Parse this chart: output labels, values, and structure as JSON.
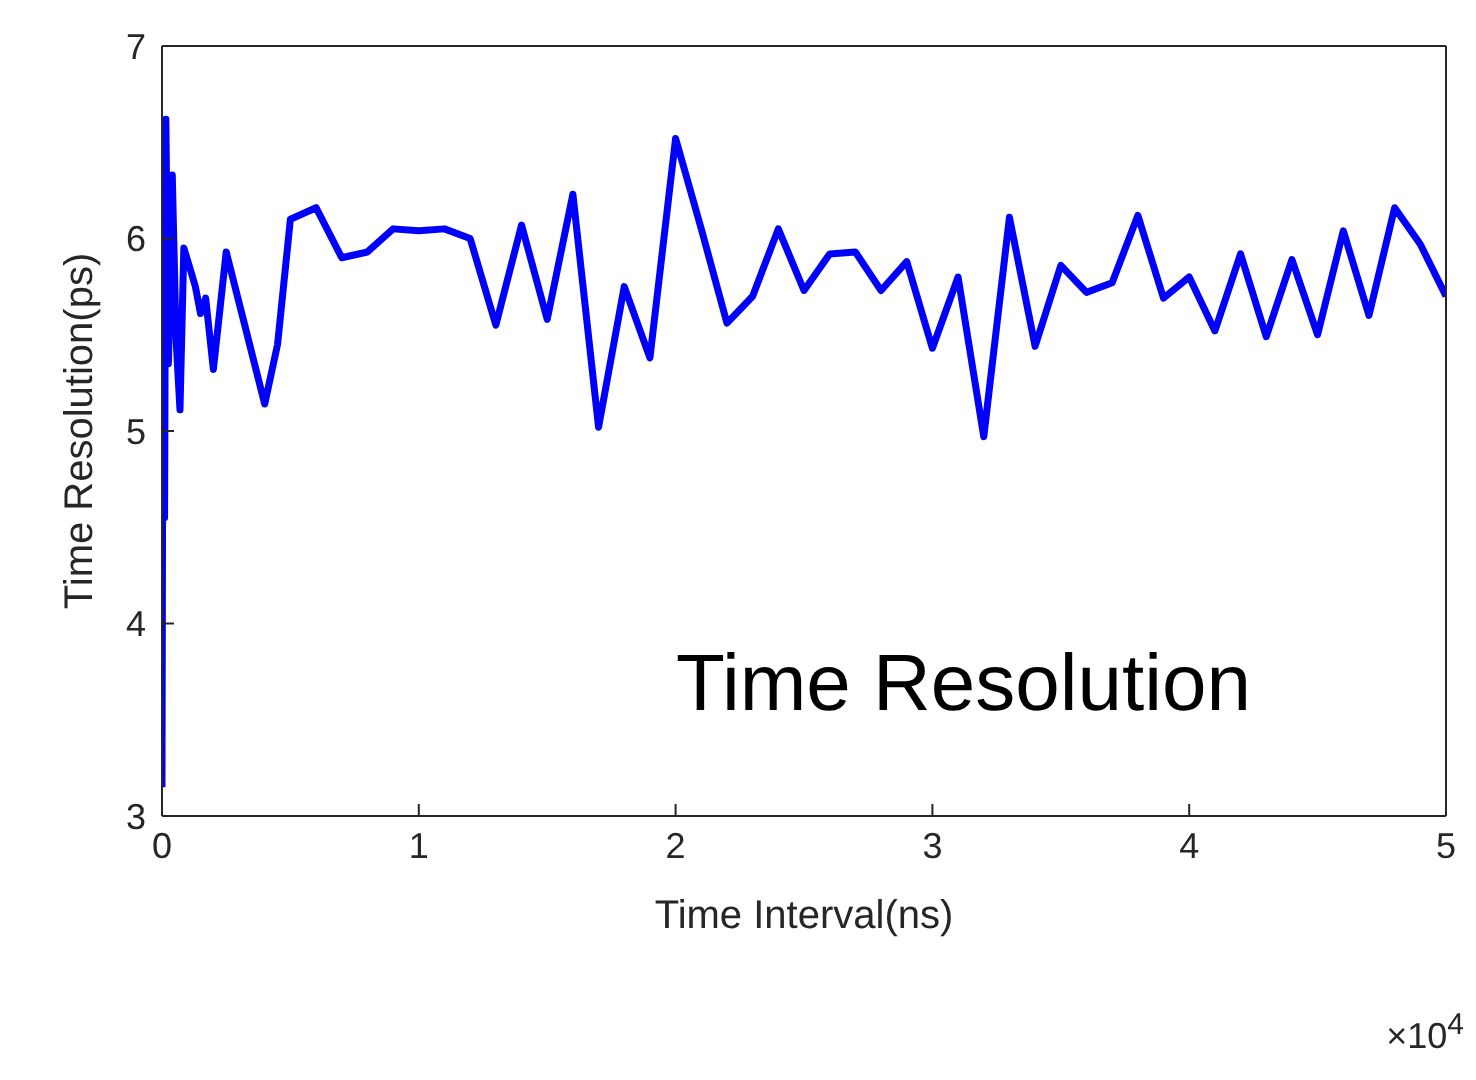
{
  "chart_data": {
    "type": "line",
    "xlabel": "Time Interval(ns)",
    "ylabel": "Time Resolution(ps)",
    "annotations": [
      "Time Resolution",
      "×10$^{4}$"
    ],
    "xlim": [
      0,
      5
    ],
    "ylim": [
      3,
      7
    ],
    "xticks": [
      0,
      1,
      2,
      3,
      4,
      5
    ],
    "yticks": [
      3,
      4,
      5,
      6,
      7
    ],
    "marker": "none",
    "line_style": "solid",
    "series": [
      {
        "color": "#0000ff",
        "x": [
          0,
          0.005,
          0.01,
          0.015,
          0.025,
          0.04,
          0.055,
          0.07,
          0.085,
          0.11,
          0.13,
          0.15,
          0.17,
          0.2,
          0.25,
          0.4,
          0.45,
          0.5,
          0.6,
          0.7,
          0.8,
          0.9,
          1.0,
          1.1,
          1.2,
          1.3,
          1.4,
          1.5,
          1.6,
          1.7,
          1.8,
          1.9,
          2.0,
          2.1,
          2.2,
          2.3,
          2.4,
          2.5,
          2.6,
          2.7,
          2.8,
          2.9,
          3.0,
          3.1,
          3.2,
          3.3,
          3.4,
          3.5,
          3.6,
          3.7,
          3.8,
          3.9,
          4.0,
          4.1,
          4.2,
          4.3,
          4.4,
          4.5,
          4.6,
          4.7,
          4.8,
          4.9,
          5.0
        ],
        "values": [
          3.15,
          6.45,
          4.55,
          6.62,
          5.35,
          6.33,
          5.47,
          5.11,
          5.95,
          5.84,
          5.75,
          5.61,
          5.69,
          5.32,
          5.93,
          5.14,
          5.45,
          6.1,
          6.16,
          5.9,
          5.93,
          6.05,
          6.04,
          6.05,
          6.0,
          5.55,
          6.07,
          5.58,
          6.23,
          5.02,
          5.75,
          5.38,
          6.52,
          6.05,
          5.56,
          5.7,
          6.05,
          5.73,
          5.92,
          5.93,
          5.73,
          5.88,
          5.43,
          5.8,
          4.97,
          6.11,
          5.44,
          5.86,
          5.72,
          5.77,
          6.12,
          5.69,
          5.8,
          5.52,
          5.92,
          5.49,
          5.89,
          5.5,
          6.04,
          5.6,
          6.16,
          5.97,
          5.7
        ]
      }
    ]
  }
}
